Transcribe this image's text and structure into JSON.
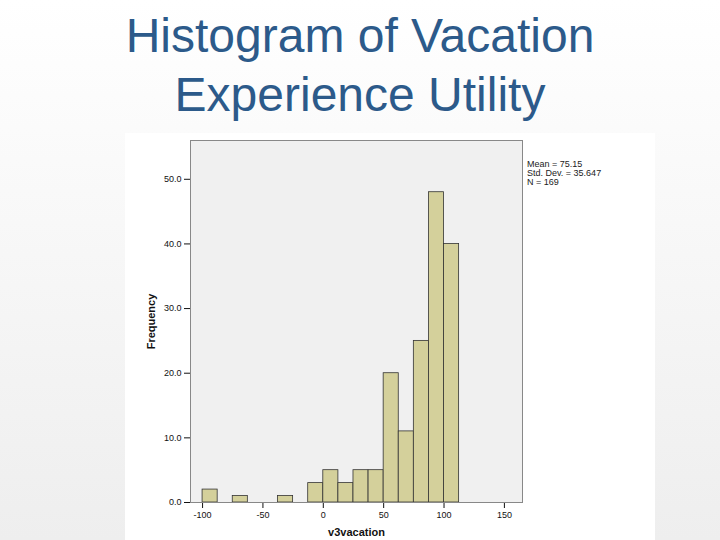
{
  "chart_data": {
    "type": "histogram",
    "title": "Histogram of Vacation Experience Utility",
    "x_label": "v3vacation",
    "y_label": "Frequency",
    "annotations": [
      "Mean = 75.15",
      "Std. Dev. = 35.647",
      "N = 169"
    ],
    "bins": [
      -100,
      -87.5,
      -75,
      -62.5,
      -50,
      -37.5,
      -25,
      -12.5,
      0,
      12.5,
      25,
      37.5,
      50,
      62.5,
      75,
      87.5,
      100,
      112.5
    ],
    "values": [
      2,
      0,
      1,
      0,
      0,
      1,
      0,
      3,
      5,
      3,
      5,
      5,
      20,
      11,
      25,
      48,
      40
    ],
    "color": "#d4d09b",
    "xlim": [
      -110,
      165
    ],
    "xticks": [
      -100,
      -50,
      0,
      50,
      100,
      150
    ],
    "ylim": [
      0,
      56
    ],
    "yticks": [
      {
        "value": 0,
        "label": "0.0"
      },
      {
        "value": 10,
        "label": "10.0"
      },
      {
        "value": 20,
        "label": "20.0"
      },
      {
        "value": 30,
        "label": "30.0"
      },
      {
        "value": 40,
        "label": "40.0"
      },
      {
        "value": 50,
        "label": "50.0"
      }
    ],
    "grid": false
  }
}
